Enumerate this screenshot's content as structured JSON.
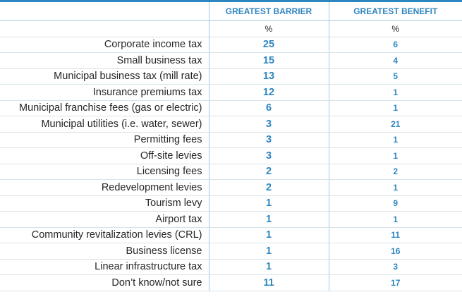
{
  "colors": {
    "accent": "#2e86c1",
    "text": "#262626"
  },
  "chart_data": {
    "type": "table",
    "columns": [
      "GREATEST BARRIER",
      "GREATEST BENEFIT"
    ],
    "units": [
      "%",
      "%"
    ],
    "rows": [
      {
        "label": "Corporate income tax",
        "barrier": 25,
        "benefit": 6
      },
      {
        "label": "Small business tax",
        "barrier": 15,
        "benefit": 4
      },
      {
        "label": "Municipal business tax (mill rate)",
        "barrier": 13,
        "benefit": 5
      },
      {
        "label": "Insurance premiums tax",
        "barrier": 12,
        "benefit": 1
      },
      {
        "label": "Municipal franchise fees (gas or electric)",
        "barrier": 6,
        "benefit": 1
      },
      {
        "label": "Municipal utilities (i.e. water, sewer)",
        "barrier": 3,
        "benefit": 21
      },
      {
        "label": "Permitting fees",
        "barrier": 3,
        "benefit": 1
      },
      {
        "label": "Off-site levies",
        "barrier": 3,
        "benefit": 1
      },
      {
        "label": "Licensing fees",
        "barrier": 2,
        "benefit": 2
      },
      {
        "label": "Redevelopment levies",
        "barrier": 2,
        "benefit": 1
      },
      {
        "label": "Tourism levy",
        "barrier": 1,
        "benefit": 9
      },
      {
        "label": "Airport tax",
        "barrier": 1,
        "benefit": 1
      },
      {
        "label": "Community revitalization levies (CRL)",
        "barrier": 1,
        "benefit": 11
      },
      {
        "label": "Business license",
        "barrier": 1,
        "benefit": 16
      },
      {
        "label": "Linear infrastructure tax",
        "barrier": 1,
        "benefit": 3
      },
      {
        "label": "Don’t know/not sure",
        "barrier": 11,
        "benefit": 17
      }
    ]
  }
}
